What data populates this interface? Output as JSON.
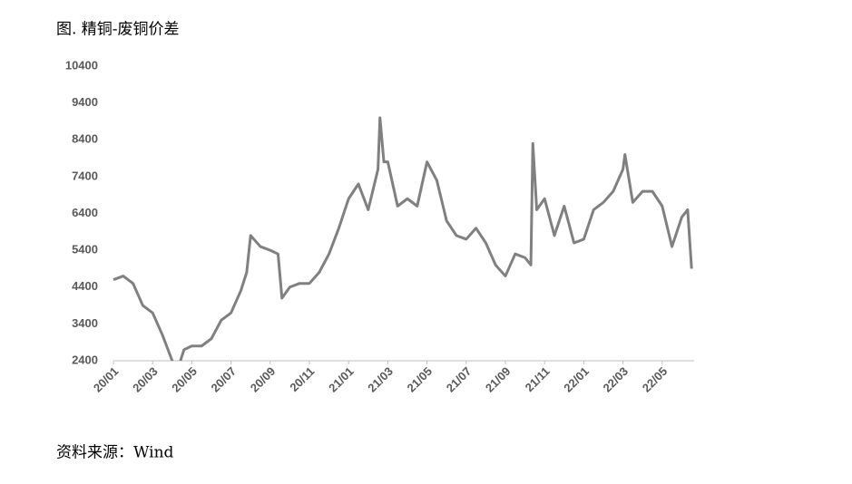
{
  "chart_data": {
    "type": "line",
    "title": "图. 精铜-废铜价差",
    "source": "资料来源：Wind",
    "x": [
      0,
      0.5,
      1,
      1.5,
      2,
      2.5,
      3,
      3.3,
      3.6,
      4,
      4.5,
      5,
      5.5,
      6,
      6.5,
      6.8,
      7,
      7.5,
      8,
      8.4,
      8.6,
      9,
      9.5,
      10,
      10.5,
      11,
      11.5,
      12,
      12.5,
      13,
      13.5,
      13.6,
      13.8,
      14,
      14.5,
      15,
      15.5,
      16,
      16.5,
      17,
      17.5,
      18,
      18.5,
      19,
      19.5,
      20,
      20.5,
      21,
      21.3,
      21.4,
      21.6,
      22,
      22.5,
      23,
      23.5,
      24,
      24.5,
      25,
      25.5,
      26,
      26.1,
      26.5,
      27,
      27.5,
      28,
      28.5,
      29,
      29.3,
      29.5
    ],
    "series": [
      {
        "color": "#808080",
        "values": [
          4600,
          4700,
          4500,
          3900,
          3700,
          3100,
          2400,
          2200,
          2700,
          2800,
          2800,
          3000,
          3500,
          3700,
          4300,
          4800,
          5800,
          5500,
          5400,
          5300,
          4100,
          4400,
          4500,
          4500,
          4800,
          5300,
          6000,
          6800,
          7200,
          6500,
          7600,
          9000,
          7800,
          7800,
          6600,
          6800,
          6600,
          7800,
          7300,
          6200,
          5800,
          5700,
          6000,
          5600,
          5000,
          4700,
          5300,
          5200,
          5000,
          8300,
          6500,
          6800,
          5800,
          6600,
          5600,
          5700,
          6500,
          6700,
          7000,
          7600,
          8000,
          6700,
          7000,
          7000,
          6600,
          5500,
          6300,
          6500,
          4900
        ]
      }
    ],
    "xlim": [
      0,
      29.6
    ],
    "xticks": [
      {
        "value": 0,
        "label": "20/01"
      },
      {
        "value": 2,
        "label": "20/03"
      },
      {
        "value": 4,
        "label": "20/05"
      },
      {
        "value": 6,
        "label": "20/07"
      },
      {
        "value": 8,
        "label": "20/09"
      },
      {
        "value": 10,
        "label": "20/11"
      },
      {
        "value": 12,
        "label": "21/01"
      },
      {
        "value": 14,
        "label": "21/03"
      },
      {
        "value": 16,
        "label": "21/05"
      },
      {
        "value": 18,
        "label": "21/07"
      },
      {
        "value": 20,
        "label": "21/09"
      },
      {
        "value": 22,
        "label": "21/11"
      },
      {
        "value": 24,
        "label": "22/01"
      },
      {
        "value": 26,
        "label": "22/03"
      },
      {
        "value": 28,
        "label": "22/05"
      }
    ],
    "ylim": [
      2400,
      10400
    ],
    "yticks": [
      2400,
      3400,
      4400,
      5400,
      6400,
      7400,
      8400,
      9400,
      10400
    ],
    "grid": false
  }
}
